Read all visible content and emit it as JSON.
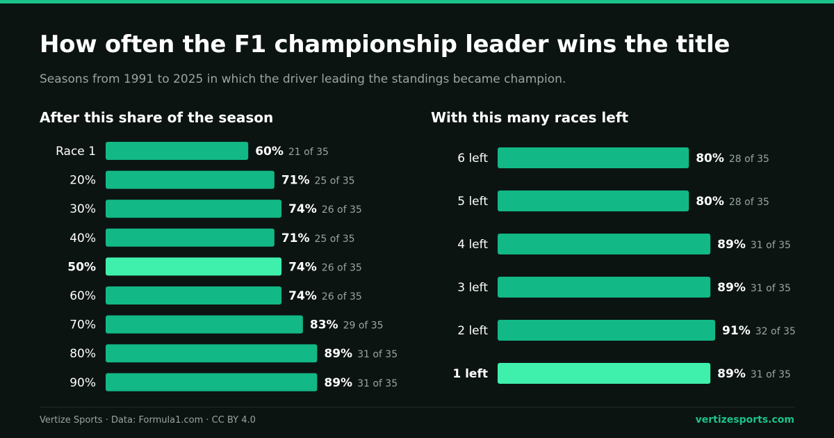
{
  "title": "How often the F1 championship leader wins the title",
  "subtitle": "Seasons from 1991 to 2025 in which the driver leading the standings became champion.",
  "colors": {
    "accent": "#1cc389",
    "bar": "#12b886",
    "highlight": "#3ff0ac",
    "muted": "#9aa5a1",
    "background": "#0c1412"
  },
  "chart_data": [
    {
      "type": "bar",
      "orientation": "horizontal",
      "title": "After this share of the season",
      "categories": [
        "Race 1",
        "20%",
        "30%",
        "40%",
        "50%",
        "60%",
        "70%",
        "80%",
        "90%"
      ],
      "values": [
        60,
        71,
        74,
        71,
        74,
        74,
        83,
        89,
        89
      ],
      "value_labels": [
        "60%",
        "71%",
        "74%",
        "71%",
        "74%",
        "74%",
        "83%",
        "89%",
        "89%"
      ],
      "count_labels": [
        "21 of 35",
        "25 of 35",
        "26 of 35",
        "25 of 35",
        "26 of 35",
        "26 of 35",
        "29 of 35",
        "31 of 35",
        "31 of 35"
      ],
      "highlight": "50%",
      "xlim": [
        0,
        100
      ],
      "grid": false
    },
    {
      "type": "bar",
      "orientation": "horizontal",
      "title": "With this many races left",
      "categories": [
        "6 left",
        "5 left",
        "4 left",
        "3 left",
        "2 left",
        "1 left"
      ],
      "values": [
        80,
        80,
        89,
        89,
        91,
        89
      ],
      "value_labels": [
        "80%",
        "80%",
        "89%",
        "89%",
        "91%",
        "89%"
      ],
      "count_labels": [
        "28 of 35",
        "28 of 35",
        "31 of 35",
        "31 of 35",
        "32 of 35",
        "31 of 35"
      ],
      "highlight": "1 left",
      "xlim": [
        0,
        100
      ],
      "grid": false
    }
  ],
  "footer": {
    "credit": "Vertize Sports · Data: Formula1.com · CC BY 4.0",
    "site": "vertizesports.com"
  }
}
